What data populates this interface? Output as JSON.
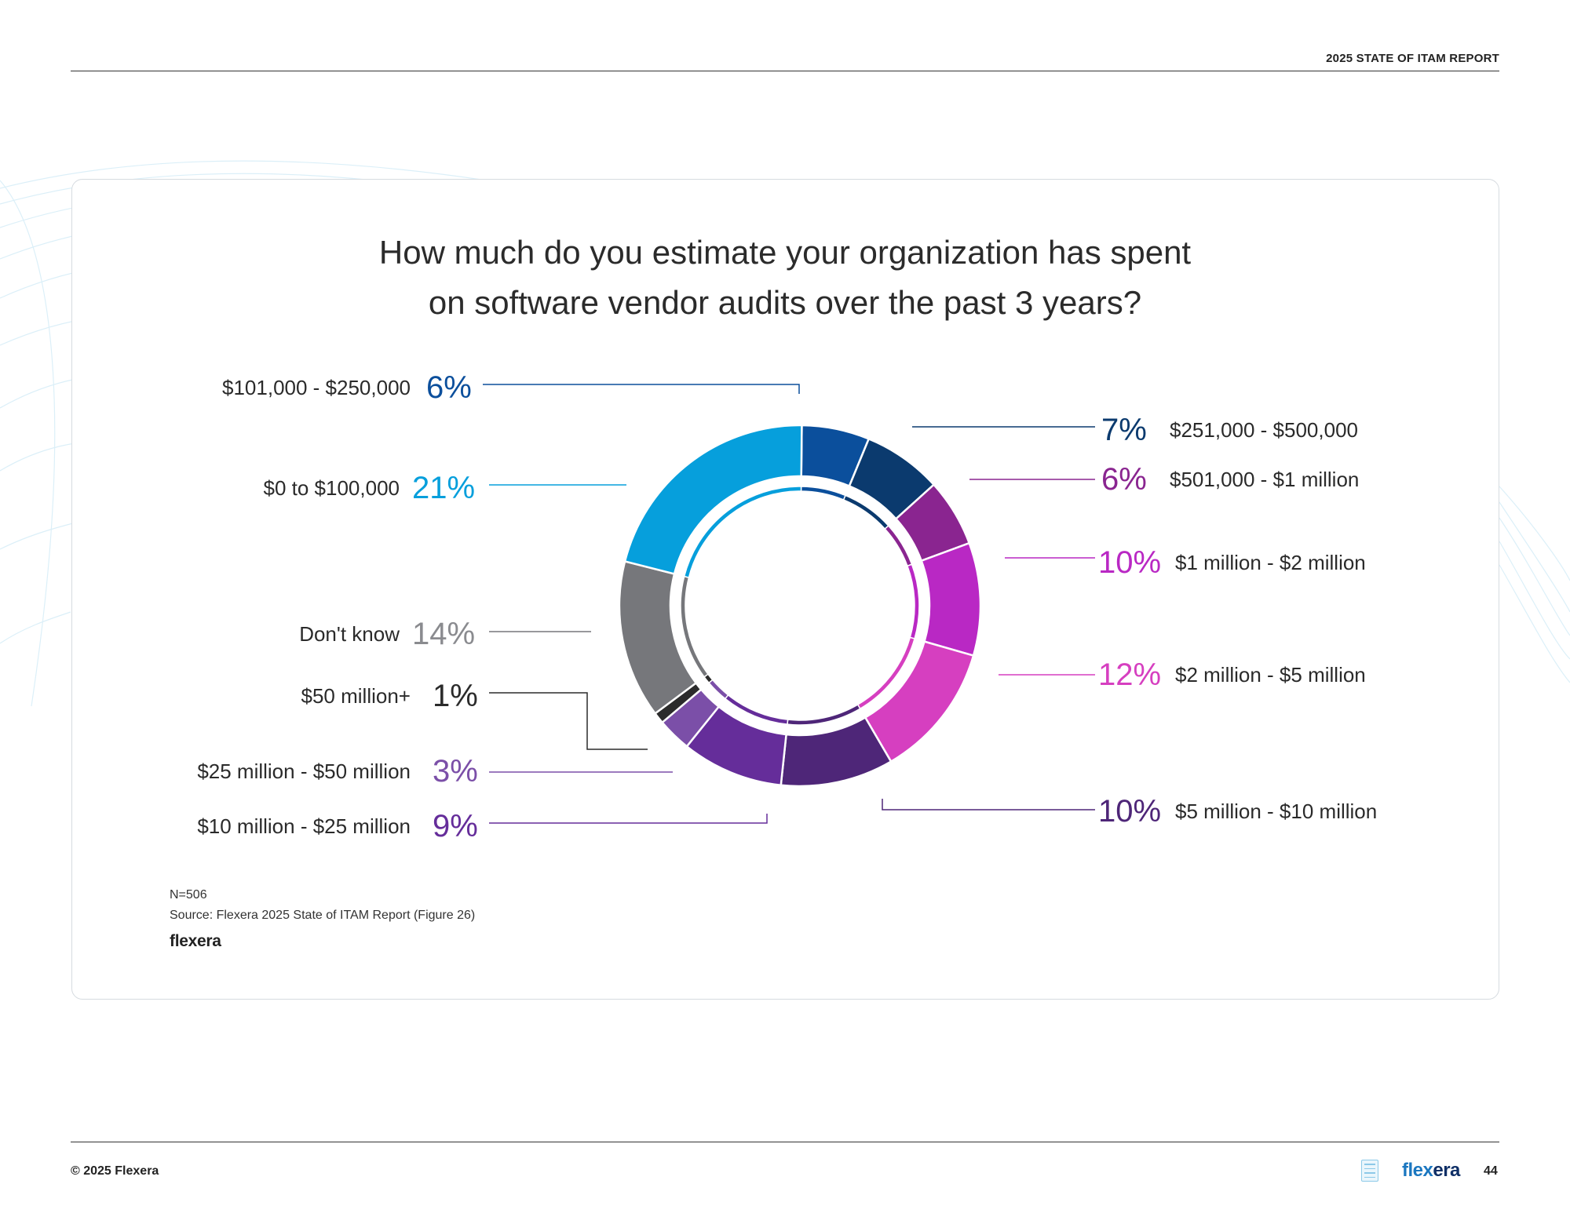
{
  "header": {
    "report_title": "2025 STATE OF ITAM REPORT"
  },
  "chart_data": {
    "type": "pie",
    "title": "How much do you estimate your organization has spent on software vendor audits over the past 3 years?",
    "title_lines": [
      "How much do you estimate your organization has spent",
      "on software vendor audits over the past 3 years?"
    ],
    "slices": [
      {
        "label": "$101,000 - $250,000",
        "value": 6,
        "display": "6%",
        "color": "#0b4f9c",
        "text_color": "#0b4f9c"
      },
      {
        "label": "$251,000 - $500,000",
        "value": 7,
        "display": "7%",
        "color": "#0b3a6e",
        "text_color": "#0b3a6e"
      },
      {
        "label": "$501,000 - $1 million",
        "value": 6,
        "display": "6%",
        "color": "#8a2590",
        "text_color": "#8a2590"
      },
      {
        "label": "$1 million - $2 million",
        "value": 10,
        "display": "10%",
        "color": "#b928c4",
        "text_color": "#b928c4"
      },
      {
        "label": "$2 million - $5 million",
        "value": 12,
        "display": "12%",
        "color": "#d63fc0",
        "text_color": "#d63fc0"
      },
      {
        "label": "$5 million - $10 million",
        "value": 10,
        "display": "10%",
        "color": "#4e2678",
        "text_color": "#4e2678"
      },
      {
        "label": "$10 million - $25 million",
        "value": 9,
        "display": "9%",
        "color": "#652d9a",
        "text_color": "#652d9a"
      },
      {
        "label": "$25 million - $50 million",
        "value": 3,
        "display": "3%",
        "color": "#7b4fa8",
        "text_color": "#7b4fa8"
      },
      {
        "label": "$50 million+",
        "value": 1,
        "display": "1%",
        "color": "#2b2b2b",
        "text_color": "#2b2b2b"
      },
      {
        "label": "Don't know",
        "value": 14,
        "display": "14%",
        "color": "#76777b",
        "text_color": "#8a8b8f"
      },
      {
        "label": "$0 to $100,000",
        "value": 21,
        "display": "21%",
        "color": "#069fdc",
        "text_color": "#069fdc"
      }
    ]
  },
  "notes": {
    "n": "N=506",
    "source": "Source: Flexera 2025 State of ITAM Report (Figure 26)",
    "logo_text": "flexera"
  },
  "footer": {
    "copyright": "© 2025 Flexera",
    "brand_flex": "flex",
    "brand_era": "era",
    "page_number": "44"
  }
}
